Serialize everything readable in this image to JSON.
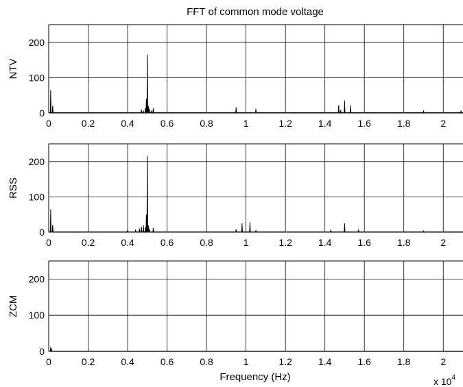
{
  "chart_data": {
    "type": "line",
    "title": "FFT of common mode voltage",
    "xlabel": "Frequency (Hz)",
    "x_multiplier": "x 10",
    "x_multiplier_exponent": "4",
    "xlim": [
      0,
      2.1
    ],
    "x_ticks": [
      0,
      0.2,
      0.4,
      0.6,
      0.8,
      1.0,
      1.2,
      1.4,
      1.6,
      1.8,
      2.0
    ],
    "x_tick_labels": [
      "0",
      "0.2",
      "0.4",
      "0.6",
      "0.8",
      "1",
      "1.2",
      "1.4",
      "1.6",
      "1.8",
      "2"
    ],
    "grid": true,
    "subplots": [
      {
        "ylabel": "NTV",
        "ylim": [
          0,
          250
        ],
        "y_ticks": [
          0,
          100,
          200
        ],
        "y_tick_labels": [
          "0",
          "100",
          "200"
        ],
        "peaks": [
          {
            "x": 0.01,
            "y": 65
          },
          {
            "x": 0.02,
            "y": 20
          },
          {
            "x": 0.47,
            "y": 10
          },
          {
            "x": 0.48,
            "y": 6
          },
          {
            "x": 0.49,
            "y": 14
          },
          {
            "x": 0.495,
            "y": 40
          },
          {
            "x": 0.5,
            "y": 165
          },
          {
            "x": 0.505,
            "y": 20
          },
          {
            "x": 0.51,
            "y": 12
          },
          {
            "x": 0.52,
            "y": 6
          },
          {
            "x": 0.53,
            "y": 14
          },
          {
            "x": 0.95,
            "y": 16
          },
          {
            "x": 1.05,
            "y": 12
          },
          {
            "x": 1.47,
            "y": 22
          },
          {
            "x": 1.48,
            "y": 8
          },
          {
            "x": 1.5,
            "y": 35
          },
          {
            "x": 1.53,
            "y": 22
          },
          {
            "x": 1.9,
            "y": 6
          },
          {
            "x": 2.09,
            "y": 6
          }
        ]
      },
      {
        "ylabel": "RSS",
        "ylim": [
          0,
          250
        ],
        "y_ticks": [
          0,
          100,
          200
        ],
        "y_tick_labels": [
          "0",
          "100",
          "200"
        ],
        "peaks": [
          {
            "x": 0.01,
            "y": 65
          },
          {
            "x": 0.02,
            "y": 20
          },
          {
            "x": 0.4,
            "y": 6
          },
          {
            "x": 0.44,
            "y": 6
          },
          {
            "x": 0.46,
            "y": 10
          },
          {
            "x": 0.47,
            "y": 15
          },
          {
            "x": 0.48,
            "y": 20
          },
          {
            "x": 0.49,
            "y": 14
          },
          {
            "x": 0.495,
            "y": 50
          },
          {
            "x": 0.5,
            "y": 215
          },
          {
            "x": 0.505,
            "y": 20
          },
          {
            "x": 0.51,
            "y": 10
          },
          {
            "x": 0.53,
            "y": 12
          },
          {
            "x": 0.95,
            "y": 8
          },
          {
            "x": 0.98,
            "y": 25
          },
          {
            "x": 1.02,
            "y": 28
          },
          {
            "x": 1.05,
            "y": 5
          },
          {
            "x": 1.43,
            "y": 6
          },
          {
            "x": 1.5,
            "y": 25
          },
          {
            "x": 1.57,
            "y": 6
          },
          {
            "x": 1.9,
            "y": 4
          }
        ]
      },
      {
        "ylabel": "ZCM",
        "ylim": [
          0,
          250
        ],
        "y_ticks": [
          0,
          100,
          200
        ],
        "y_tick_labels": [
          "0",
          "100",
          "200"
        ],
        "peaks": [
          {
            "x": 0.01,
            "y": 12
          },
          {
            "x": 0.015,
            "y": 6
          }
        ]
      }
    ]
  }
}
